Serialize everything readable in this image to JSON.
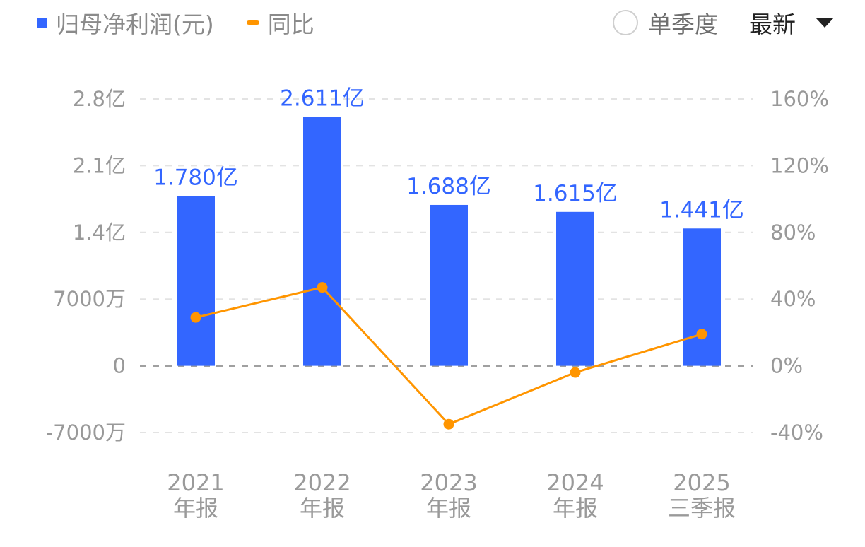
{
  "legend": {
    "bar_label": "归母净利润(元)",
    "line_label": "同比"
  },
  "controls": {
    "single_quarter_label": "单季度",
    "single_quarter_checked": false,
    "sort_label": "最新"
  },
  "colors": {
    "bar": "#3366ff",
    "line": "#ff9500",
    "axis_text": "#999999",
    "grid": "#e3e3e3",
    "zero_line": "#a0a0a0"
  },
  "chart_data": {
    "type": "bar+line",
    "categories": [
      "2021 年报",
      "2022 年报",
      "2023 年报",
      "2024 年报",
      "2025 三季报"
    ],
    "category_lines": [
      [
        "2021",
        "年报"
      ],
      [
        "2022",
        "年报"
      ],
      [
        "2023",
        "年报"
      ],
      [
        "2024",
        "年报"
      ],
      [
        "2025",
        "三季报"
      ]
    ],
    "series": [
      {
        "name": "归母净利润(元)",
        "type": "bar",
        "axis": "left",
        "values": [
          178000000,
          261100000,
          168800000,
          161500000,
          144100000
        ],
        "labels": [
          "1.780亿",
          "2.611亿",
          "1.688亿",
          "1.615亿",
          "1.441亿"
        ]
      },
      {
        "name": "同比",
        "type": "line",
        "axis": "right",
        "values": [
          29,
          47,
          -35,
          -4,
          19
        ],
        "unit": "%"
      }
    ],
    "y_left": {
      "ticks": [
        "2.8亿",
        "2.1亿",
        "1.4亿",
        "7000万",
        "0",
        "-7000万"
      ],
      "values": [
        280000000,
        210000000,
        140000000,
        70000000,
        0,
        -70000000
      ],
      "range": [
        -70000000,
        280000000
      ]
    },
    "y_right": {
      "ticks": [
        "160%",
        "120%",
        "80%",
        "40%",
        "0%",
        "-40%"
      ],
      "values": [
        160,
        120,
        80,
        40,
        0,
        -40
      ],
      "range": [
        -40,
        160
      ]
    },
    "grid": true,
    "legend_position": "top-left"
  }
}
